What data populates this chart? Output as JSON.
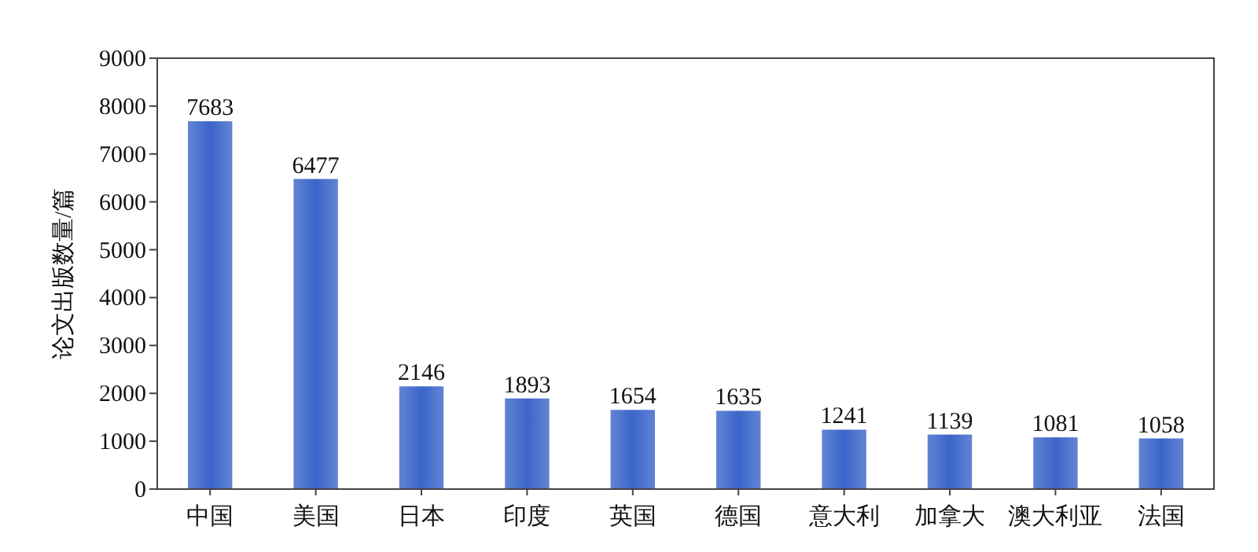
{
  "chart_data": {
    "type": "bar",
    "ylabel": "论文出版数量/篇",
    "categories": [
      "中国",
      "美国",
      "日本",
      "印度",
      "英国",
      "德国",
      "意大利",
      "加拿大",
      "澳大利亚",
      "法国"
    ],
    "values": [
      7683,
      6477,
      2146,
      1893,
      1654,
      1635,
      1241,
      1139,
      1081,
      1058
    ],
    "color": "#3b65c9",
    "ylim": [
      0,
      9000
    ],
    "yticks": [
      0,
      1000,
      2000,
      3000,
      4000,
      5000,
      6000,
      7000,
      8000,
      9000
    ],
    "grid": false,
    "data_labels": true
  }
}
